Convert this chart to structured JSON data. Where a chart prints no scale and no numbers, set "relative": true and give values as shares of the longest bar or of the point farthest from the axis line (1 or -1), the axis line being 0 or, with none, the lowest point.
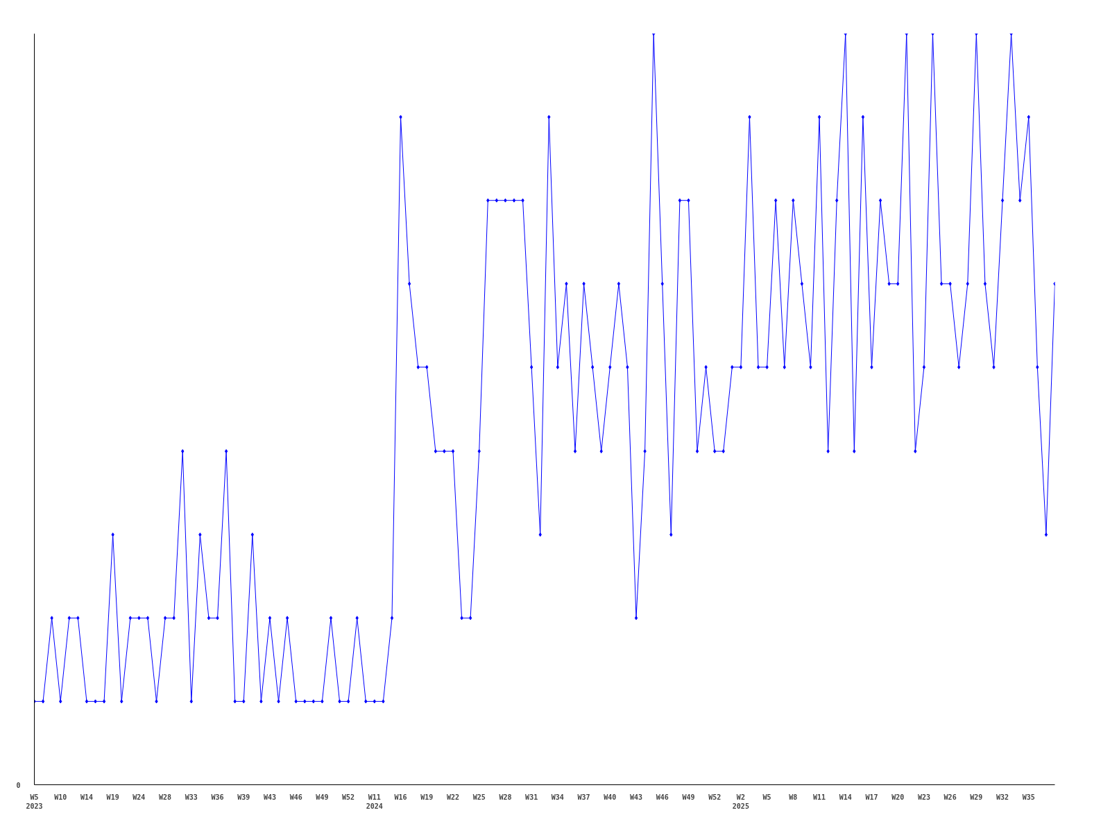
{
  "chart_data": {
    "type": "line",
    "relative": true,
    "color": "#0000ff",
    "marker": "diamond",
    "line_style": "solid",
    "grid": false,
    "annotations": [
      "0"
    ],
    "categories": [
      "W5\n2023",
      null,
      null,
      "W10",
      null,
      null,
      "W14",
      null,
      null,
      "W19",
      null,
      null,
      "W24",
      null,
      null,
      "W28",
      null,
      null,
      "W33",
      null,
      null,
      "W36",
      null,
      null,
      "W39",
      null,
      null,
      "W43",
      null,
      null,
      "W46",
      null,
      null,
      "W49",
      null,
      null,
      "W52",
      null,
      null,
      "W11\n2024",
      null,
      null,
      "W16",
      null,
      null,
      "W19",
      null,
      null,
      "W22",
      null,
      null,
      "W25",
      null,
      null,
      "W28",
      null,
      null,
      "W31",
      null,
      null,
      "W34",
      null,
      null,
      "W37",
      null,
      null,
      "W40",
      null,
      null,
      "W43",
      null,
      null,
      "W46",
      null,
      null,
      "W49",
      null,
      null,
      "W52",
      null,
      null,
      "W2\n2025",
      null,
      null,
      "W5",
      null,
      null,
      "W8",
      null,
      null,
      "W11",
      null,
      null,
      "W14",
      null,
      null,
      "W17",
      null,
      null,
      "W20",
      null,
      null,
      "W23",
      null,
      null,
      "W26",
      null,
      null,
      "W29",
      null,
      null,
      "W32",
      null,
      null,
      "W35",
      null,
      null,
      null
    ],
    "values": [
      0.111,
      0.111,
      0.222,
      0.111,
      0.222,
      0.222,
      0.111,
      0.111,
      0.111,
      0.333,
      0.111,
      0.222,
      0.222,
      0.222,
      0.111,
      0.222,
      0.222,
      0.444,
      0.111,
      0.333,
      0.222,
      0.222,
      0.444,
      0.111,
      0.111,
      0.333,
      0.111,
      0.222,
      0.111,
      0.222,
      0.111,
      0.111,
      0.111,
      0.111,
      0.222,
      0.111,
      0.111,
      0.222,
      0.111,
      0.111,
      0.111,
      0.222,
      0.889,
      0.667,
      0.556,
      0.556,
      0.444,
      0.444,
      0.444,
      0.222,
      0.222,
      0.444,
      0.778,
      0.778,
      0.778,
      0.778,
      0.778,
      0.556,
      0.333,
      0.889,
      0.556,
      0.667,
      0.444,
      0.667,
      0.556,
      0.444,
      0.556,
      0.667,
      0.556,
      0.222,
      0.444,
      1,
      0.667,
      0.333,
      0.778,
      0.778,
      0.444,
      0.556,
      0.444,
      0.444,
      0.556,
      0.556,
      0.889,
      0.556,
      0.556,
      0.778,
      0.556,
      0.778,
      0.667,
      0.556,
      0.889,
      0.444,
      0.778,
      1,
      0.444,
      0.889,
      0.556,
      0.778,
      0.667,
      0.667,
      1,
      0.444,
      0.556,
      1,
      0.667,
      0.667,
      0.556,
      0.667,
      1,
      0.667,
      0.556,
      0.778,
      1,
      0.778,
      0.889,
      0.556,
      0.333,
      0.667
    ]
  }
}
